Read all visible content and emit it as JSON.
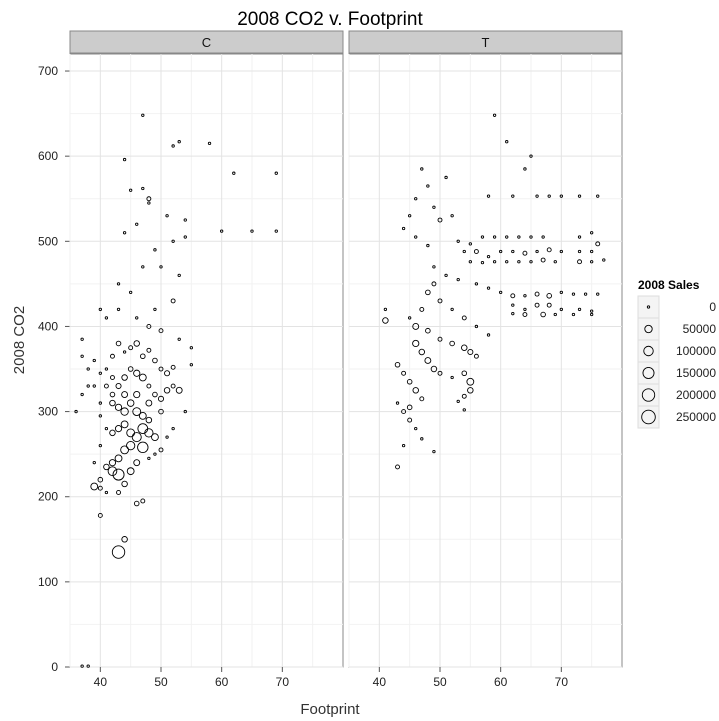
{
  "chart_data": {
    "type": "scatter",
    "title": "2008 CO2 v. Footprint",
    "xlabel": "Footprint",
    "ylabel": "2008 CO2",
    "xlim": [
      35,
      80
    ],
    "ylim": [
      0,
      720
    ],
    "x_ticks": [
      40,
      50,
      60,
      70
    ],
    "y_ticks": [
      0,
      100,
      200,
      300,
      400,
      500,
      600,
      700
    ],
    "grid": true,
    "panels": [
      "C",
      "T"
    ],
    "size_legend": {
      "title": "2008 Sales",
      "values": [
        0,
        50000,
        100000,
        150000,
        200000,
        250000
      ],
      "labels": [
        "0",
        "50000",
        "100000",
        "150000",
        "200000",
        "250000"
      ]
    },
    "series": [
      {
        "panel": "C",
        "points": [
          [
            47,
            648,
            0
          ],
          [
            44,
            596,
            0
          ],
          [
            53,
            617,
            0
          ],
          [
            52,
            612,
            0
          ],
          [
            58,
            615,
            0
          ],
          [
            62,
            580,
            0
          ],
          [
            69,
            580,
            0
          ],
          [
            60,
            512,
            0
          ],
          [
            65,
            512,
            0
          ],
          [
            69,
            512,
            0
          ],
          [
            54,
            525,
            0
          ],
          [
            54,
            505,
            0
          ],
          [
            48,
            545,
            0
          ],
          [
            45,
            560,
            0
          ],
          [
            47,
            562,
            0
          ],
          [
            48,
            550,
            5000
          ],
          [
            51,
            530,
            0
          ],
          [
            52,
            500,
            0
          ],
          [
            46,
            520,
            0
          ],
          [
            44,
            510,
            0
          ],
          [
            49,
            490,
            0
          ],
          [
            50,
            470,
            0
          ],
          [
            53,
            460,
            0
          ],
          [
            43,
            450,
            0
          ],
          [
            45,
            440,
            0
          ],
          [
            47,
            470,
            0
          ],
          [
            52,
            430,
            5000
          ],
          [
            49,
            420,
            0
          ],
          [
            40,
            420,
            0
          ],
          [
            41,
            410,
            0
          ],
          [
            43,
            420,
            0
          ],
          [
            46,
            410,
            0
          ],
          [
            48,
            400,
            5000
          ],
          [
            50,
            395,
            5000
          ],
          [
            53,
            385,
            0
          ],
          [
            55,
            375,
            0
          ],
          [
            37,
            385,
            0
          ],
          [
            37,
            365,
            0
          ],
          [
            38,
            350,
            0
          ],
          [
            38,
            330,
            0
          ],
          [
            37,
            320,
            0
          ],
          [
            36,
            300,
            0
          ],
          [
            39,
            330,
            0
          ],
          [
            40,
            310,
            0
          ],
          [
            40,
            295,
            0
          ],
          [
            41,
            280,
            0
          ],
          [
            40,
            260,
            0
          ],
          [
            39,
            240,
            0
          ],
          [
            41,
            350,
            0
          ],
          [
            42,
            365,
            5000
          ],
          [
            43,
            380,
            10000
          ],
          [
            44,
            370,
            0
          ],
          [
            45,
            375,
            5000
          ],
          [
            46,
            380,
            20000
          ],
          [
            47,
            365,
            10000
          ],
          [
            48,
            372,
            5000
          ],
          [
            49,
            360,
            10000
          ],
          [
            50,
            350,
            5000
          ],
          [
            51,
            345,
            15000
          ],
          [
            52,
            330,
            5000
          ],
          [
            53,
            325,
            25000
          ],
          [
            42,
            340,
            5000
          ],
          [
            43,
            330,
            15000
          ],
          [
            44,
            340,
            20000
          ],
          [
            45,
            350,
            10000
          ],
          [
            46,
            345,
            30000
          ],
          [
            47,
            340,
            40000
          ],
          [
            48,
            330,
            5000
          ],
          [
            49,
            320,
            10000
          ],
          [
            50,
            315,
            15000
          ],
          [
            42,
            310,
            20000
          ],
          [
            43,
            305,
            30000
          ],
          [
            44,
            300,
            50000
          ],
          [
            45,
            310,
            35000
          ],
          [
            46,
            300,
            60000
          ],
          [
            47,
            295,
            40000
          ],
          [
            48,
            290,
            20000
          ],
          [
            44,
            285,
            40000
          ],
          [
            43,
            280,
            30000
          ],
          [
            42,
            275,
            20000
          ],
          [
            45,
            275,
            60000
          ],
          [
            46,
            270,
            90000
          ],
          [
            47,
            280,
            110000
          ],
          [
            48,
            275,
            70000
          ],
          [
            49,
            270,
            40000
          ],
          [
            45,
            260,
            70000
          ],
          [
            47,
            258,
            130000
          ],
          [
            44,
            255,
            60000
          ],
          [
            43,
            245,
            40000
          ],
          [
            42,
            240,
            30000
          ],
          [
            41,
            235,
            20000
          ],
          [
            42,
            230,
            80000
          ],
          [
            43,
            226,
            150000
          ],
          [
            40,
            220,
            10000
          ],
          [
            39,
            212,
            40000
          ],
          [
            40,
            210,
            5000
          ],
          [
            41,
            205,
            0
          ],
          [
            43,
            205,
            5000
          ],
          [
            44,
            215,
            20000
          ],
          [
            45,
            230,
            40000
          ],
          [
            46,
            240,
            25000
          ],
          [
            40,
            178,
            5000
          ],
          [
            44,
            150,
            20000
          ],
          [
            43,
            135,
            200000
          ],
          [
            46,
            192,
            10000
          ],
          [
            47,
            195,
            5000
          ],
          [
            42,
            320,
            10000
          ],
          [
            41,
            330,
            5000
          ],
          [
            40,
            345,
            0
          ],
          [
            39,
            360,
            0
          ],
          [
            44,
            320,
            25000
          ],
          [
            46,
            320,
            30000
          ],
          [
            48,
            310,
            25000
          ],
          [
            50,
            300,
            10000
          ],
          [
            51,
            325,
            20000
          ],
          [
            52,
            352,
            5000
          ],
          [
            55,
            355,
            0
          ],
          [
            54,
            300,
            0
          ],
          [
            52,
            280,
            0
          ],
          [
            51,
            270,
            0
          ],
          [
            50,
            255,
            5000
          ],
          [
            49,
            250,
            0
          ],
          [
            48,
            245,
            0
          ],
          [
            37,
            1,
            0
          ],
          [
            38,
            1,
            0
          ]
        ]
      },
      {
        "panel": "T",
        "points": [
          [
            59,
            648,
            0
          ],
          [
            61,
            617,
            0
          ],
          [
            65,
            600,
            0
          ],
          [
            64,
            585,
            0
          ],
          [
            58,
            553,
            0
          ],
          [
            62,
            553,
            0
          ],
          [
            66,
            553,
            0
          ],
          [
            68,
            553,
            0
          ],
          [
            70,
            553,
            0
          ],
          [
            73,
            553,
            0
          ],
          [
            76,
            553,
            0
          ],
          [
            47,
            585,
            0
          ],
          [
            51,
            575,
            0
          ],
          [
            48,
            565,
            0
          ],
          [
            46,
            550,
            0
          ],
          [
            49,
            540,
            0
          ],
          [
            45,
            530,
            0
          ],
          [
            50,
            525,
            5000
          ],
          [
            52,
            530,
            0
          ],
          [
            44,
            515,
            0
          ],
          [
            46,
            505,
            0
          ],
          [
            48,
            495,
            0
          ],
          [
            53,
            500,
            0
          ],
          [
            55,
            497,
            0
          ],
          [
            57,
            505,
            0
          ],
          [
            59,
            505,
            0
          ],
          [
            61,
            505,
            0
          ],
          [
            63,
            505,
            0
          ],
          [
            65,
            505,
            0
          ],
          [
            67,
            505,
            0
          ],
          [
            73,
            505,
            0
          ],
          [
            75,
            510,
            0
          ],
          [
            76,
            497,
            5000
          ],
          [
            54,
            488,
            0
          ],
          [
            56,
            488,
            5000
          ],
          [
            58,
            482,
            0
          ],
          [
            60,
            488,
            0
          ],
          [
            62,
            488,
            0
          ],
          [
            64,
            486,
            5000
          ],
          [
            66,
            488,
            0
          ],
          [
            68,
            490,
            5000
          ],
          [
            70,
            488,
            0
          ],
          [
            73,
            488,
            0
          ],
          [
            75,
            488,
            0
          ],
          [
            77,
            478,
            0
          ],
          [
            55,
            476,
            0
          ],
          [
            57,
            475,
            0
          ],
          [
            59,
            476,
            0
          ],
          [
            61,
            476,
            0
          ],
          [
            63,
            476,
            0
          ],
          [
            65,
            476,
            0
          ],
          [
            67,
            478,
            5000
          ],
          [
            69,
            476,
            0
          ],
          [
            73,
            476,
            5000
          ],
          [
            75,
            476,
            0
          ],
          [
            49,
            470,
            0
          ],
          [
            51,
            460,
            0
          ],
          [
            53,
            455,
            0
          ],
          [
            56,
            450,
            0
          ],
          [
            58,
            445,
            0
          ],
          [
            60,
            440,
            0
          ],
          [
            62,
            436,
            5000
          ],
          [
            64,
            436,
            0
          ],
          [
            66,
            438,
            5000
          ],
          [
            68,
            436,
            10000
          ],
          [
            70,
            440,
            0
          ],
          [
            72,
            438,
            0
          ],
          [
            74,
            438,
            0
          ],
          [
            76,
            438,
            0
          ],
          [
            62,
            425,
            0
          ],
          [
            64,
            420,
            0
          ],
          [
            66,
            425,
            5000
          ],
          [
            68,
            425,
            5000
          ],
          [
            70,
            420,
            0
          ],
          [
            73,
            420,
            0
          ],
          [
            75,
            418,
            0
          ],
          [
            62,
            415,
            0
          ],
          [
            64,
            414,
            5000
          ],
          [
            67,
            414,
            10000
          ],
          [
            69,
            414,
            0
          ],
          [
            72,
            414,
            0
          ],
          [
            75,
            414,
            0
          ],
          [
            49,
            450,
            5000
          ],
          [
            48,
            440,
            10000
          ],
          [
            50,
            430,
            5000
          ],
          [
            52,
            420,
            0
          ],
          [
            54,
            410,
            5000
          ],
          [
            56,
            400,
            0
          ],
          [
            58,
            390,
            0
          ],
          [
            47,
            420,
            5000
          ],
          [
            45,
            410,
            0
          ],
          [
            41,
            420,
            0
          ],
          [
            41,
            407,
            20000
          ],
          [
            46,
            400,
            25000
          ],
          [
            48,
            395,
            10000
          ],
          [
            50,
            385,
            5000
          ],
          [
            52,
            380,
            10000
          ],
          [
            54,
            375,
            20000
          ],
          [
            55,
            370,
            15000
          ],
          [
            56,
            365,
            5000
          ],
          [
            46,
            380,
            30000
          ],
          [
            47,
            370,
            20000
          ],
          [
            48,
            360,
            25000
          ],
          [
            49,
            350,
            20000
          ],
          [
            50,
            345,
            5000
          ],
          [
            52,
            340,
            0
          ],
          [
            54,
            345,
            10000
          ],
          [
            55,
            335,
            40000
          ],
          [
            55,
            325,
            20000
          ],
          [
            54,
            318,
            5000
          ],
          [
            43,
            355,
            10000
          ],
          [
            44,
            345,
            5000
          ],
          [
            45,
            335,
            10000
          ],
          [
            46,
            325,
            20000
          ],
          [
            47,
            315,
            5000
          ],
          [
            45,
            305,
            10000
          ],
          [
            44,
            300,
            5000
          ],
          [
            43,
            310,
            0
          ],
          [
            45,
            290,
            5000
          ],
          [
            46,
            280,
            0
          ],
          [
            47,
            268,
            0
          ],
          [
            44,
            260,
            0
          ],
          [
            43,
            235,
            5000
          ],
          [
            49,
            253,
            0
          ],
          [
            54,
            302,
            0
          ],
          [
            53,
            312,
            0
          ]
        ]
      }
    ]
  }
}
